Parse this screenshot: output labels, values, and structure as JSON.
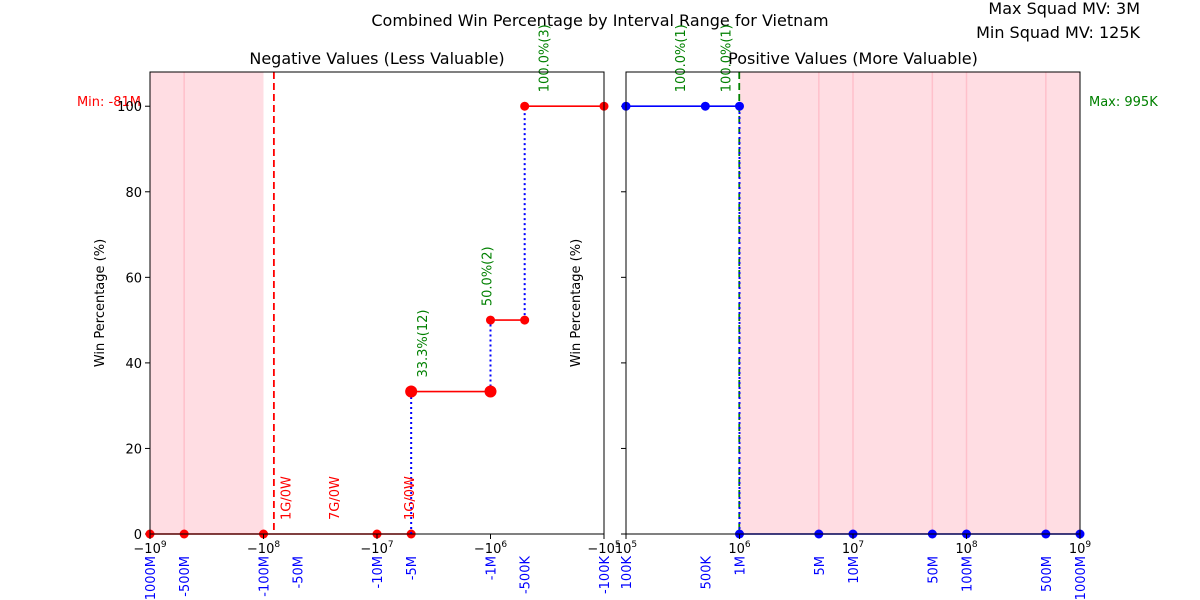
{
  "title": "Combined Win Percentage by Interval Range for Vietnam",
  "info": {
    "max_mv": "Max Squad MV: 3M",
    "min_mv": "Min Squad MV: 125K"
  },
  "chart_data": [
    {
      "id": "negative",
      "type": "line",
      "title": "Negative Values (Less Valuable)",
      "ylabel": "Win Percentage (%)",
      "xscale": "symlog-negative",
      "ylim": [
        0,
        108
      ],
      "yticks": [
        0,
        20,
        40,
        60,
        80,
        100
      ],
      "log_ticks": [
        {
          "value": -1000000000,
          "base": "−10",
          "exp": "9"
        },
        {
          "value": -100000000,
          "base": "−10",
          "exp": "8"
        },
        {
          "value": -10000000,
          "base": "−10",
          "exp": "7"
        },
        {
          "value": -1000000,
          "base": "−10",
          "exp": "6"
        },
        {
          "value": -100000,
          "base": "−10",
          "exp": "5"
        }
      ],
      "interval_labels": [
        {
          "value": -1000000000,
          "label": "-1000M"
        },
        {
          "value": -500000000,
          "label": "-500M"
        },
        {
          "value": -100000000,
          "label": "-100M"
        },
        {
          "value": -50000000,
          "label": "-50M"
        },
        {
          "value": -10000000,
          "label": "-10M"
        },
        {
          "value": -5000000,
          "label": "-5M"
        },
        {
          "value": -1000000,
          "label": "-1M"
        },
        {
          "value": -500000,
          "label": "-500K"
        },
        {
          "value": -100000,
          "label": "-100K"
        }
      ],
      "shaded": [
        -1000000000,
        -100000000
      ],
      "limit_line": {
        "value": -81000000,
        "label": "Min: -81M",
        "color": "#ff0000"
      },
      "points": [
        {
          "x": -1000000000,
          "y": 0
        },
        {
          "x": -500000000,
          "y": 0
        },
        {
          "x": -100000000,
          "y": 0
        },
        {
          "x": -10000000,
          "y": 0
        },
        {
          "x": -5000000,
          "y": 0
        }
      ],
      "zero_labels": [
        {
          "x": -80000000,
          "label": "1G/0W"
        },
        {
          "x": -30000000,
          "label": "7G/0W"
        },
        {
          "x": -6500000,
          "label": "1G/0W"
        }
      ],
      "steps": [
        {
          "x1": -5000000,
          "x2": -1000000,
          "y": 33.3,
          "label": "33.3%(12)",
          "big": true
        },
        {
          "x1": -1000000,
          "x2": -500000,
          "y": 50,
          "label": "50.0%(2)",
          "big": false
        },
        {
          "x1": -500000,
          "x2": -100000,
          "y": 100,
          "label": "100.0%(3)",
          "big": false
        }
      ],
      "verticals": [
        {
          "x": -5000000,
          "y1": 0,
          "y2": 33.3
        },
        {
          "x": -1000000,
          "y1": 33.3,
          "y2": 50
        },
        {
          "x": -500000,
          "y1": 50,
          "y2": 100
        }
      ]
    },
    {
      "id": "positive",
      "type": "line",
      "title": "Positive Values (More Valuable)",
      "ylabel": "Win Percentage (%)",
      "xscale": "log",
      "ylim": [
        0,
        108
      ],
      "log_ticks": [
        {
          "value": 100000,
          "base": "10",
          "exp": "5"
        },
        {
          "value": 1000000,
          "base": "10",
          "exp": "6"
        },
        {
          "value": 10000000,
          "base": "10",
          "exp": "7"
        },
        {
          "value": 100000000,
          "base": "10",
          "exp": "8"
        },
        {
          "value": 1000000000,
          "base": "10",
          "exp": "9"
        }
      ],
      "interval_labels": [
        {
          "value": 100000,
          "label": "100K"
        },
        {
          "value": 500000,
          "label": "500K"
        },
        {
          "value": 1000000,
          "label": "1M"
        },
        {
          "value": 5000000,
          "label": "5M"
        },
        {
          "value": 10000000,
          "label": "10M"
        },
        {
          "value": 50000000,
          "label": "50M"
        },
        {
          "value": 100000000,
          "label": "100M"
        },
        {
          "value": 500000000,
          "label": "500M"
        },
        {
          "value": 1000000000,
          "label": "1000M"
        }
      ],
      "shaded": [
        1000000,
        1000000000
      ],
      "limit_line": {
        "value": 995000,
        "label": "Max: 995K",
        "color": "#008000"
      },
      "series": [
        {
          "name": "win",
          "x": [
            100000,
            500000,
            1000000
          ],
          "y": [
            100,
            100,
            100
          ]
        },
        {
          "name": "zero",
          "x": [
            1000000,
            5000000,
            10000000,
            50000000,
            100000000,
            500000000,
            1000000000
          ],
          "y": [
            0,
            0,
            0,
            0,
            0,
            0,
            0
          ]
        }
      ],
      "verticals": [
        {
          "x": 1000000,
          "y1": 0,
          "y2": 100
        }
      ],
      "annotations": [
        {
          "x": 300000,
          "label": "100.0%(1)"
        },
        {
          "x": 750000,
          "label": "100.0%(1)"
        }
      ]
    }
  ]
}
